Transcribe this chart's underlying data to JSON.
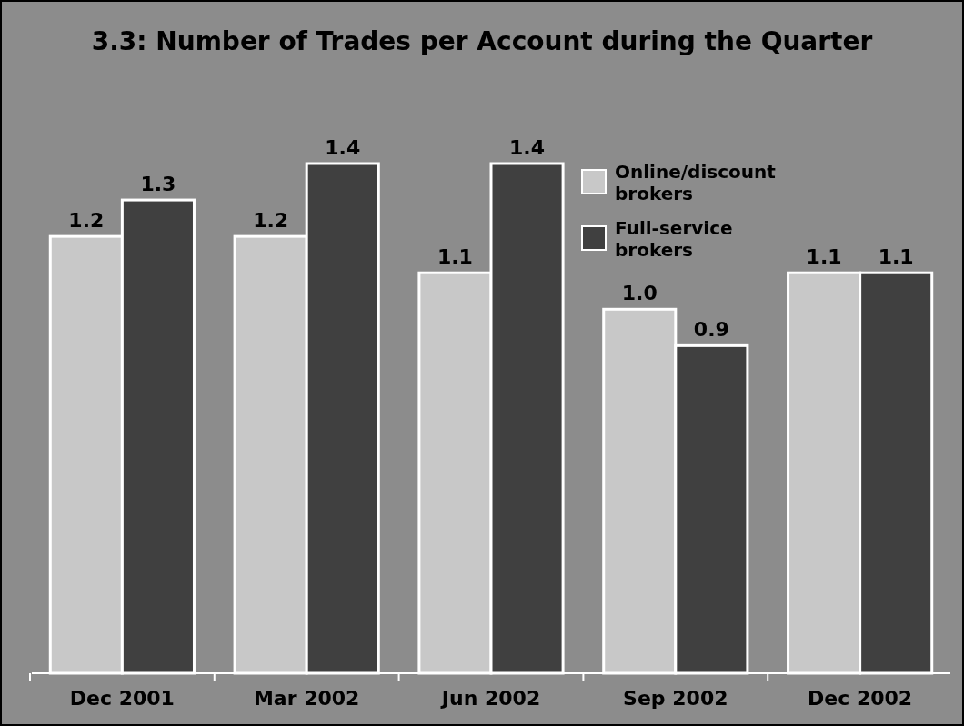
{
  "chart_data": {
    "type": "bar",
    "title": "3.3: Number of Trades per Account during the Quarter",
    "categories": [
      "Dec 2001",
      "Mar 2002",
      "Jun 2002",
      "Sep 2002",
      "Dec 2002"
    ],
    "series": [
      {
        "name": "Online/discount brokers",
        "color": "#c8c8c8",
        "values": [
          1.2,
          1.2,
          1.1,
          1.0,
          1.1
        ],
        "value_labels": [
          "1.2",
          "1.2",
          "1.1",
          "1.0",
          "1.1"
        ]
      },
      {
        "name": "Full-service brokers",
        "color": "#404040",
        "values": [
          1.3,
          1.4,
          1.4,
          0.9,
          1.1
        ],
        "value_labels": [
          "1.3",
          "1.4",
          "1.4",
          "0.9",
          "1.1"
        ]
      }
    ],
    "legend": "center"
  }
}
